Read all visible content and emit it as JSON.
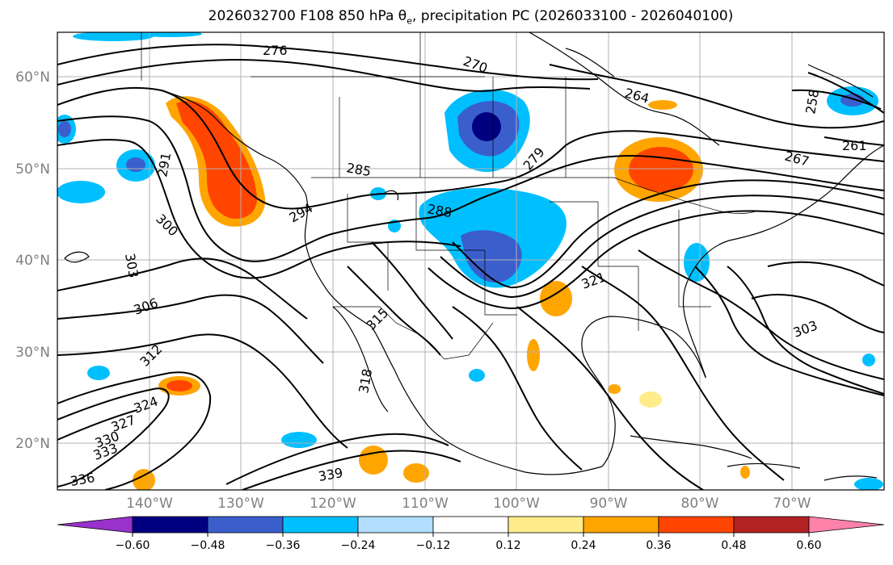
{
  "title": {
    "prefix": "2026032700 F108 850 hPa ",
    "symbol": "θ",
    "symbol_sub": "e",
    "suffix": ", precipitation PC (2026033100 - 2026040100)"
  },
  "map": {
    "lat_labels": [
      "60°N",
      "50°N",
      "40°N",
      "30°N",
      "20°N"
    ],
    "lon_labels": [
      "140°W",
      "130°W",
      "120°W",
      "110°W",
      "100°W",
      "90°W",
      "80°W",
      "70°W"
    ]
  },
  "colorbar": {
    "colors": [
      "#9932cc",
      "#000080",
      "#3a5fcd",
      "#00bfff",
      "#b2dfff",
      "#ffffff",
      "#ffec8b",
      "#ffa500",
      "#ff4500",
      "#b22222",
      "#ff82ab"
    ],
    "tick_labels": [
      "−0.60",
      "−0.48",
      "−0.36",
      "−0.24",
      "−0.12",
      "0.12",
      "0.24",
      "0.36",
      "0.48",
      "0.60"
    ]
  },
  "contour_labels": [
    "276",
    "270",
    "264",
    "258",
    "261",
    "267",
    "291",
    "285",
    "279",
    "294",
    "300",
    "288",
    "303",
    "306",
    "312",
    "315",
    "321",
    "324",
    "318",
    "327",
    "330",
    "333",
    "336",
    "339",
    "303"
  ]
}
